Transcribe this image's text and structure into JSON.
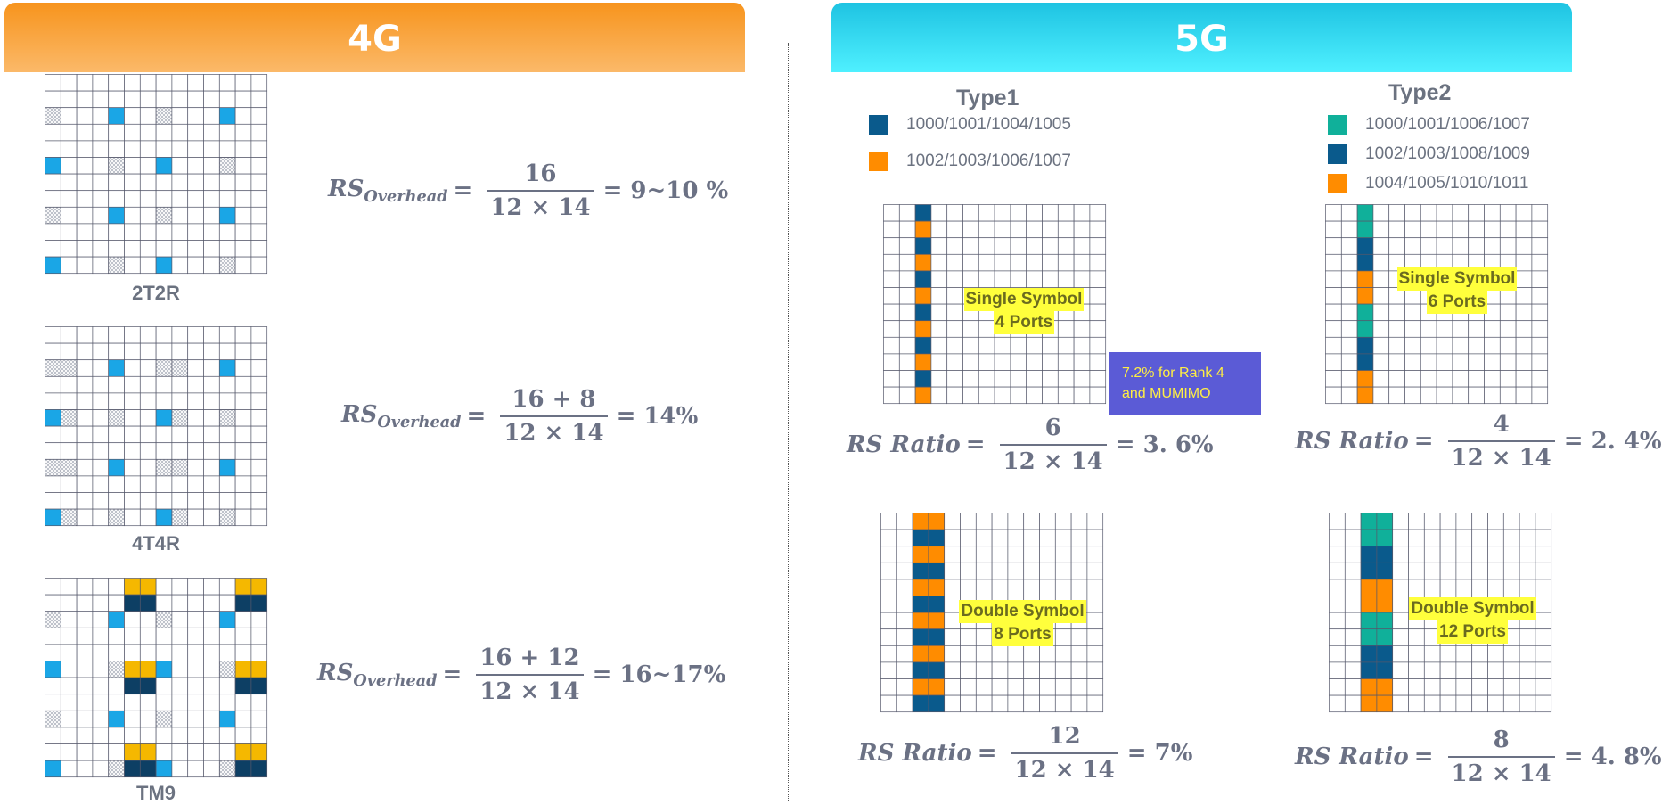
{
  "headers": {
    "left": "4G",
    "right": "5G"
  },
  "colors": {
    "rs_blue": "#1aa6e6",
    "pilot_yellow": "#f5b800",
    "pilot_navy": "#0d3f64",
    "dmrs_navy": "#0a5a8c",
    "dmrs_orange": "#ff8c00",
    "dmrs_teal": "#10b09a"
  },
  "lte": [
    {
      "label": "2T2R",
      "formula": {
        "lhs": "RS",
        "sub": "Overhead",
        "num": "16",
        "den": "12 × 14",
        "result": "= 9~10 %"
      }
    },
    {
      "label": "4T4R",
      "formula": {
        "lhs": "RS",
        "sub": "Overhead",
        "num": "16 + 8",
        "den": "12 × 14",
        "result": "= 14%"
      }
    },
    {
      "label": "TM9",
      "formula": {
        "lhs": "RS",
        "sub": "Overhead",
        "num": "16 + 12",
        "den": "12 × 14",
        "result": "= 16~17%"
      }
    }
  ],
  "nr": {
    "type1": {
      "title": "Type1",
      "legend": [
        "1000/1001/1004/1005",
        "1002/1003/1006/1007"
      ],
      "single": {
        "label_line1": "Single Symbol",
        "label_line2": "4 Ports",
        "formula": {
          "lhs": "RS Ratio",
          "num": "6",
          "den": "12 × 14",
          "result": "= 3. 6%"
        }
      },
      "double": {
        "label_line1": "Double Symbol",
        "label_line2": "8 Ports",
        "formula": {
          "lhs": "RS Ratio",
          "num": "12",
          "den": "12 × 14",
          "result": "= 7%"
        }
      }
    },
    "type2": {
      "title": "Type2",
      "legend": [
        "1000/1001/1006/1007",
        "1002/1003/1008/1009",
        "1004/1005/1010/1011"
      ],
      "single": {
        "label_line1": "Single Symbol",
        "label_line2": "6 Ports",
        "formula": {
          "lhs": "RS Ratio",
          "num": "4",
          "den": "12 × 14",
          "result": "= 2. 4%"
        }
      },
      "double": {
        "label_line1": "Double Symbol",
        "label_line2": "12 Ports",
        "formula": {
          "lhs": "RS Ratio",
          "num": "8",
          "den": "12 × 14",
          "result": "= 4. 8%"
        }
      }
    },
    "note": {
      "line1": "7.2% for Rank 4",
      "line2": "and MUMIMO"
    }
  }
}
